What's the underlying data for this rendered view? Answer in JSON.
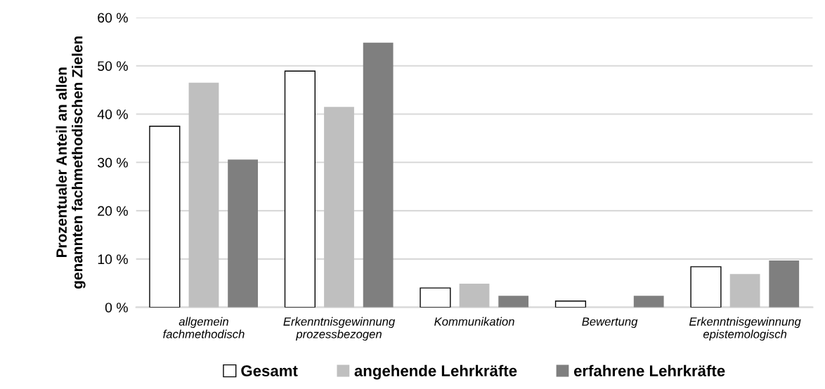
{
  "chart_data": {
    "type": "bar",
    "ylabel": "Prozentualer Anteil an allen\ngenannten fachmethodischen Zielen",
    "categories": [
      "allgemein\nfachmethodisch",
      "Erkenntnisgewinnung\nprozessbezogen",
      "Kommunikation",
      "Bewertung",
      "Erkenntnisgewinnung\nepistemologisch"
    ],
    "series": [
      {
        "name": "Gesamt",
        "color": "#ffffff",
        "values": [
          37.5,
          48.9,
          4.0,
          1.3,
          8.4
        ]
      },
      {
        "name": "angehende Lehrkräfte",
        "color": "#bfbfbf",
        "values": [
          46.5,
          41.5,
          4.9,
          0,
          6.9
        ]
      },
      {
        "name": "erfahrene Lehrkräfte",
        "color": "#7f7f7f",
        "values": [
          30.6,
          54.8,
          2.4,
          2.4,
          9.7
        ]
      }
    ],
    "ylim": [
      0,
      60
    ],
    "yticks": [
      {
        "value": 0,
        "label": "0 %"
      },
      {
        "value": 10,
        "label": "10 %"
      },
      {
        "value": 20,
        "label": "20 %"
      },
      {
        "value": 30,
        "label": "30 %"
      },
      {
        "value": 40,
        "label": "40 %"
      },
      {
        "value": 50,
        "label": "50 %"
      },
      {
        "value": 60,
        "label": "60 %"
      }
    ],
    "grid": "y",
    "legend": "bottom"
  }
}
